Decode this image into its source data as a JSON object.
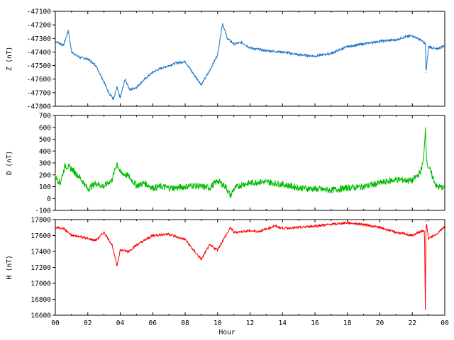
{
  "chart_data": [
    {
      "type": "line",
      "ylabel": "Z (nT)",
      "ylim": [
        -47800,
        -47100
      ],
      "y_ticks": [
        "-47100",
        "-47200",
        "-47300",
        "-47400",
        "-47500",
        "-47600",
        "-47700",
        "-47800"
      ],
      "color": "#1874cd",
      "x": [
        0,
        0.5,
        0.8,
        1,
        1.5,
        2,
        2.5,
        3,
        3.3,
        3.6,
        3.8,
        4,
        4.3,
        4.6,
        5,
        5.5,
        6,
        6.5,
        7,
        7.5,
        8,
        8.5,
        9,
        9.5,
        10,
        10.3,
        10.6,
        11,
        11.5,
        12,
        12.5,
        13,
        14,
        15,
        16,
        17,
        18,
        19,
        20,
        21,
        21.5,
        22,
        22.5,
        22.8,
        22.85,
        23,
        23.5,
        24
      ],
      "values": [
        -47320,
        -47350,
        -47240,
        -47400,
        -47440,
        -47450,
        -47500,
        -47620,
        -47700,
        -47750,
        -47660,
        -47740,
        -47600,
        -47680,
        -47660,
        -47600,
        -47550,
        -47520,
        -47500,
        -47480,
        -47470,
        -47560,
        -47640,
        -47540,
        -47420,
        -47190,
        -47300,
        -47340,
        -47330,
        -47370,
        -47380,
        -47390,
        -47400,
        -47420,
        -47430,
        -47410,
        -47360,
        -47340,
        -47320,
        -47310,
        -47290,
        -47280,
        -47310,
        -47340,
        -47550,
        -47360,
        -47380,
        -47350
      ]
    },
    {
      "type": "line",
      "ylabel": "D (nT)",
      "ylim": [
        -100,
        700
      ],
      "y_ticks": [
        "700",
        "600",
        "500",
        "400",
        "300",
        "200",
        "100",
        "0",
        "-100"
      ],
      "color": "#00bb00",
      "x": [
        0,
        0.3,
        0.6,
        1,
        1.5,
        2,
        2.5,
        3,
        3.5,
        3.8,
        4,
        4.5,
        5,
        5.5,
        6,
        6.5,
        7,
        7.5,
        8,
        8.5,
        9,
        9.5,
        10,
        10.5,
        10.8,
        11,
        11.5,
        12,
        12.5,
        13,
        14,
        15,
        16,
        17,
        18,
        19,
        20,
        21,
        22,
        22.5,
        22.7,
        22.8,
        22.9,
        23.2,
        23.5,
        24
      ],
      "values": [
        190,
        130,
        280,
        250,
        180,
        80,
        130,
        100,
        160,
        300,
        220,
        190,
        110,
        130,
        90,
        100,
        90,
        90,
        100,
        110,
        100,
        90,
        150,
        100,
        20,
        80,
        120,
        130,
        140,
        140,
        120,
        90,
        80,
        70,
        90,
        100,
        130,
        160,
        150,
        220,
        330,
        600,
        300,
        200,
        100,
        90
      ]
    },
    {
      "type": "line",
      "ylabel": "H (nT)",
      "xlabel": "Hour",
      "ylim": [
        16600,
        17800
      ],
      "y_ticks": [
        "17800",
        "17600",
        "17400",
        "17200",
        "17000",
        "16800",
        "16600"
      ],
      "color": "#ff0000",
      "x": [
        0,
        0.5,
        1,
        1.5,
        2,
        2.5,
        3,
        3.5,
        3.8,
        4,
        4.5,
        5,
        5.5,
        6,
        7,
        7.5,
        8,
        8.5,
        9,
        9.5,
        10,
        10.5,
        10.8,
        11,
        11.5,
        12,
        12.5,
        13,
        13.5,
        14,
        15,
        16,
        17,
        18,
        19,
        20,
        21,
        22,
        22.5,
        22.75,
        22.8,
        22.85,
        23,
        23.5,
        24
      ],
      "values": [
        17700,
        17690,
        17600,
        17590,
        17560,
        17540,
        17640,
        17480,
        17220,
        17420,
        17400,
        17480,
        17540,
        17600,
        17620,
        17580,
        17550,
        17420,
        17300,
        17480,
        17420,
        17600,
        17700,
        17640,
        17650,
        17660,
        17650,
        17680,
        17720,
        17690,
        17700,
        17720,
        17740,
        17760,
        17740,
        17700,
        17640,
        17600,
        17650,
        17650,
        16680,
        17780,
        17560,
        17620,
        17720
      ]
    }
  ],
  "x_axis": {
    "label": "Hour",
    "range": [
      0,
      24
    ],
    "tick_labels": [
      "00",
      "02",
      "04",
      "06",
      "08",
      "10",
      "12",
      "14",
      "16",
      "18",
      "20",
      "22",
      "00"
    ]
  }
}
